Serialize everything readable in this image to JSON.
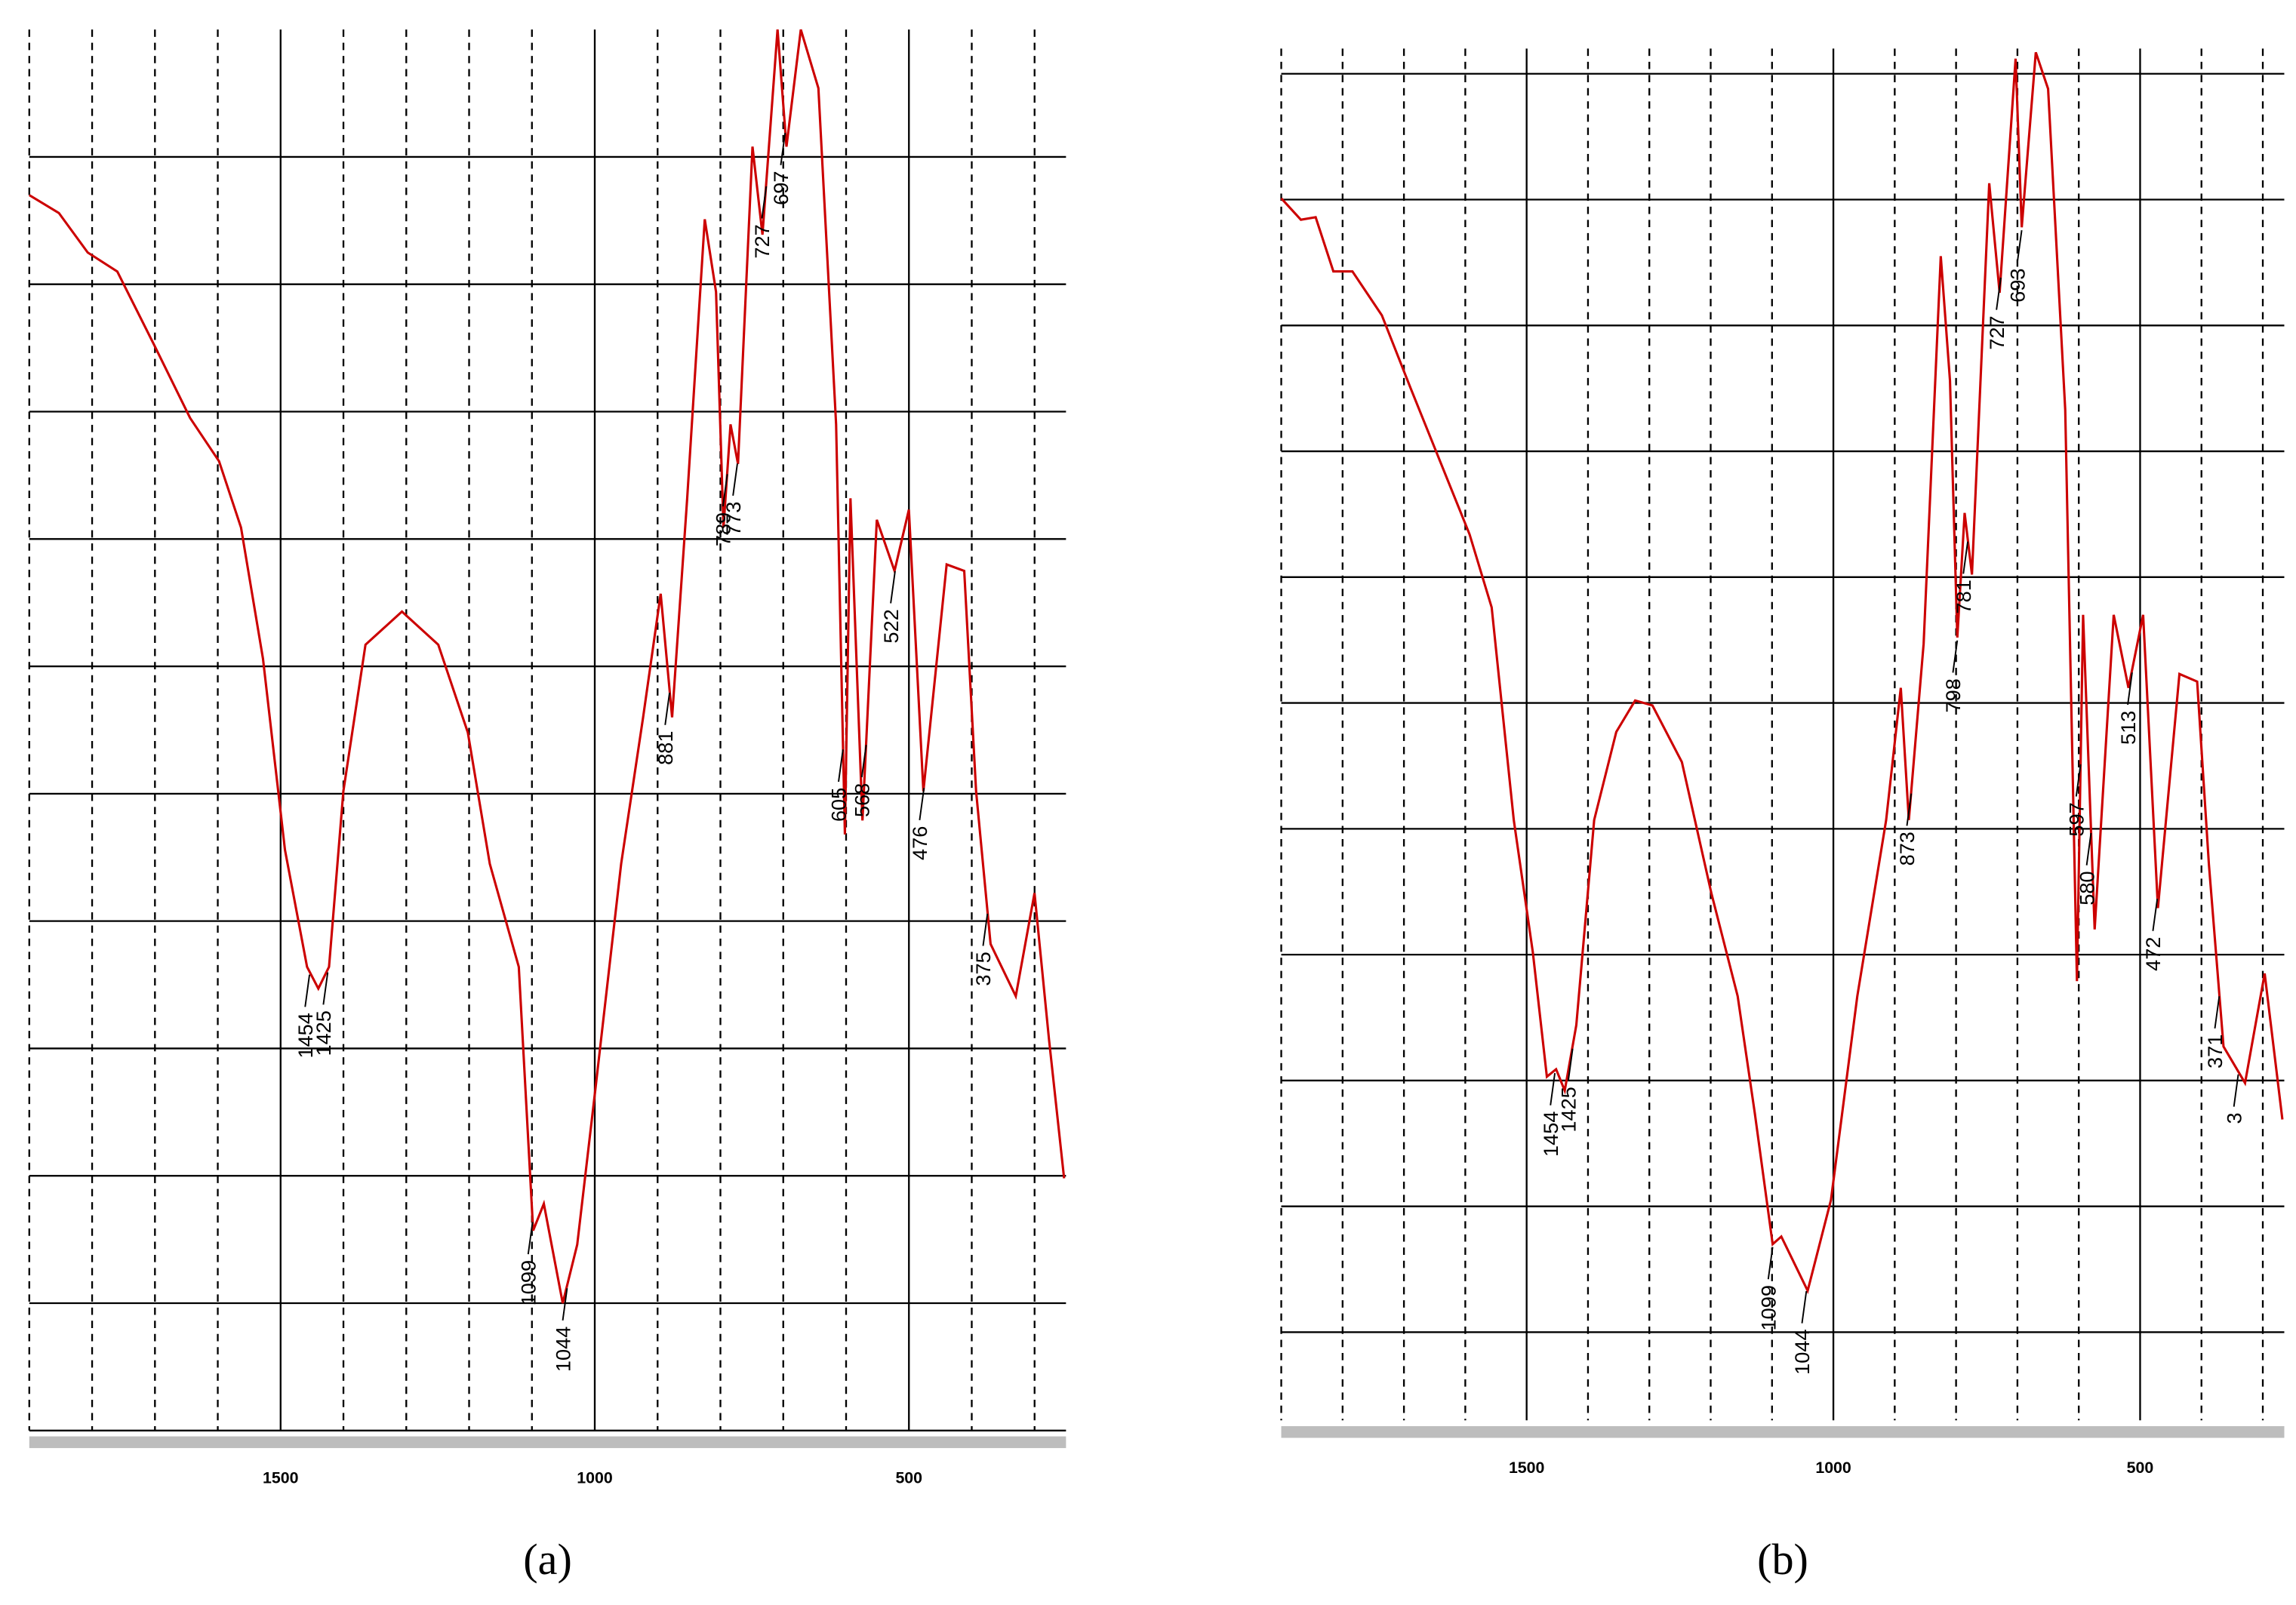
{
  "chart_data": [
    {
      "type": "line",
      "caption": "(a)",
      "color": "#cc0000",
      "xlim": [
        1900,
        250
      ],
      "ylim": [
        0,
        11
      ],
      "xticks": [
        1500,
        1000,
        500
      ],
      "xminorticks": [
        1900,
        1800,
        1700,
        1600,
        1400,
        1300,
        1200,
        1100,
        900,
        800,
        700,
        600,
        400,
        300
      ],
      "yticks": [
        0,
        1,
        2,
        3,
        4,
        5,
        6,
        7,
        8,
        9,
        10
      ],
      "x": [
        1900,
        1853,
        1807,
        1760,
        1702,
        1644,
        1598,
        1563,
        1528,
        1493,
        1458,
        1440,
        1423,
        1400,
        1365,
        1307,
        1249,
        1202,
        1167,
        1121,
        1098,
        1081,
        1051,
        1028,
        998,
        958,
        923,
        895,
        877,
        853,
        825,
        807,
        795,
        784,
        772,
        749,
        733,
        709,
        695,
        672,
        644,
        616,
        602,
        593,
        574,
        551,
        523,
        500,
        477,
        440,
        412,
        393,
        370,
        330,
        300,
        277,
        253
      ],
      "values": [
        9.7,
        9.56,
        9.25,
        9.1,
        8.53,
        7.95,
        7.61,
        7.09,
        6.06,
        4.56,
        3.64,
        3.47,
        3.64,
        5.02,
        6.17,
        6.43,
        6.17,
        5.48,
        4.45,
        3.64,
        1.57,
        1.78,
        1.0,
        1.46,
        2.72,
        4.45,
        5.6,
        6.57,
        5.6,
        7.32,
        9.51,
        8.94,
        7.09,
        7.9,
        7.59,
        10.08,
        9.39,
        11.0,
        10.08,
        11.0,
        10.54,
        7.9,
        4.68,
        7.32,
        4.79,
        7.15,
        6.75,
        7.23,
        5.02,
        6.8,
        6.75,
        5.02,
        3.82,
        3.41,
        4.22,
        3.07,
        1.98
      ],
      "annotations": [
        {
          "text": "1454",
          "x": 1454
        },
        {
          "text": "1425",
          "x": 1425
        },
        {
          "text": "1099",
          "x": 1099
        },
        {
          "text": "1044",
          "x": 1044
        },
        {
          "text": "881",
          "x": 881
        },
        {
          "text": "789",
          "x": 789
        },
        {
          "text": "773",
          "x": 773
        },
        {
          "text": "727",
          "x": 727
        },
        {
          "text": "697",
          "x": 697
        },
        {
          "text": "605",
          "x": 605
        },
        {
          "text": "568",
          "x": 568
        },
        {
          "text": "522",
          "x": 522
        },
        {
          "text": "476",
          "x": 476
        },
        {
          "text": "375",
          "x": 375
        }
      ]
    },
    {
      "type": "line",
      "caption": "(b)",
      "color": "#cc0000",
      "xlim": [
        1900,
        265
      ],
      "ylim": [
        0.3,
        11.2
      ],
      "xticks": [
        1500,
        1000,
        500
      ],
      "xminorticks": [
        1900,
        1800,
        1700,
        1600,
        1400,
        1300,
        1200,
        1100,
        900,
        800,
        700,
        600,
        400,
        300
      ],
      "yticks": [
        1,
        2,
        3,
        4,
        5,
        6,
        7,
        8,
        9,
        10,
        11
      ],
      "x": [
        1900,
        1868,
        1844,
        1815,
        1784,
        1736,
        1689,
        1641,
        1593,
        1557,
        1521,
        1490,
        1467,
        1452,
        1438,
        1419,
        1390,
        1354,
        1323,
        1295,
        1247,
        1199,
        1156,
        1128,
        1099,
        1085,
        1042,
        1004,
        961,
        914,
        890,
        877,
        853,
        825,
        810,
        798,
        786,
        774,
        746,
        729,
        703,
        693,
        670,
        650,
        622,
        603,
        593,
        574,
        543,
        519,
        495,
        471,
        436,
        407,
        388,
        364,
        329,
        297,
        268
      ],
      "values": [
        10.01,
        9.84,
        9.86,
        9.43,
        9.43,
        9.08,
        8.5,
        7.92,
        7.34,
        6.76,
        5.07,
        4.02,
        3.03,
        3.09,
        2.92,
        3.44,
        5.07,
        5.77,
        6.02,
        5.98,
        5.53,
        4.49,
        3.67,
        2.74,
        1.7,
        1.76,
        1.33,
        2.05,
        3.67,
        5.07,
        6.12,
        5.07,
        6.47,
        9.55,
        8.56,
        6.52,
        7.51,
        7.02,
        10.13,
        9.26,
        11.12,
        9.78,
        11.17,
        10.88,
        8.33,
        3.79,
        6.7,
        4.2,
        6.7,
        6.12,
        6.7,
        4.37,
        6.23,
        6.17,
        4.72,
        3.27,
        2.98,
        3.85,
        2.69
      ],
      "annotations": [
        {
          "text": "1454",
          "x": 1454
        },
        {
          "text": "1425",
          "x": 1425
        },
        {
          "text": "1099",
          "x": 1099
        },
        {
          "text": "1044",
          "x": 1044
        },
        {
          "text": "873",
          "x": 873
        },
        {
          "text": "798",
          "x": 798
        },
        {
          "text": "781",
          "x": 781
        },
        {
          "text": "727",
          "x": 727
        },
        {
          "text": "693",
          "x": 693
        },
        {
          "text": "597",
          "x": 597
        },
        {
          "text": "580",
          "x": 580
        },
        {
          "text": "513",
          "x": 513
        },
        {
          "text": "472",
          "x": 472
        },
        {
          "text": "371",
          "x": 371
        },
        {
          "text": "3",
          "x": 340
        }
      ]
    }
  ]
}
